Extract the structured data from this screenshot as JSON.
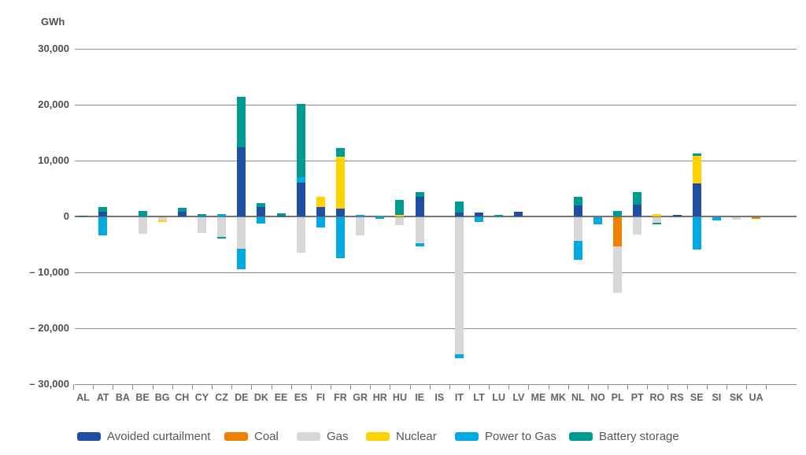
{
  "unit_label": "GWh",
  "chart_data": {
    "type": "bar",
    "stacked": true,
    "title": "",
    "ylabel": "GWh",
    "xlabel": "",
    "ylim": [
      -30000,
      30000
    ],
    "grid": "horizontal",
    "legend_position": "bottom",
    "y_ticks": [
      {
        "value": 30000,
        "label": "30,000"
      },
      {
        "value": 20000,
        "label": "20,000"
      },
      {
        "value": 10000,
        "label": "10,000"
      },
      {
        "value": 0,
        "label": "0"
      },
      {
        "value": -10000,
        "label": "– 10,000"
      },
      {
        "value": -20000,
        "label": "– 20,000"
      },
      {
        "value": -30000,
        "label": "– 30,000"
      }
    ],
    "categories": [
      "AL",
      "AT",
      "BA",
      "BE",
      "BG",
      "CH",
      "CY",
      "CZ",
      "DE",
      "DK",
      "EE",
      "ES",
      "FI",
      "FR",
      "GR",
      "HR",
      "HU",
      "IE",
      "IS",
      "IT",
      "LT",
      "LU",
      "LV",
      "ME",
      "MK",
      "NL",
      "NO",
      "PL",
      "PT",
      "RO",
      "RS",
      "SE",
      "SI",
      "SK",
      "UA"
    ],
    "series": [
      {
        "name": "Avoided curtailment",
        "color": "#1f4fa3",
        "positive": [
          150,
          850,
          0,
          0,
          0,
          850,
          0,
          0,
          12400,
          1700,
          200,
          6100,
          1700,
          1400,
          0,
          0,
          0,
          3500,
          0,
          700,
          700,
          0,
          850,
          0,
          0,
          2000,
          0,
          0,
          2100,
          0,
          250,
          5900,
          0,
          0,
          0
        ],
        "negative": [
          0,
          0,
          0,
          0,
          0,
          0,
          0,
          0,
          0,
          0,
          0,
          0,
          0,
          0,
          0,
          0,
          0,
          0,
          0,
          0,
          0,
          0,
          0,
          0,
          0,
          0,
          0,
          0,
          0,
          0,
          0,
          0,
          0,
          0,
          0
        ]
      },
      {
        "name": "Coal",
        "color": "#f08000",
        "positive": [
          0,
          0,
          0,
          0,
          0,
          0,
          0,
          0,
          0,
          0,
          0,
          0,
          0,
          0,
          0,
          0,
          0,
          0,
          0,
          0,
          0,
          0,
          0,
          0,
          0,
          0,
          0,
          0,
          0,
          0,
          0,
          0,
          0,
          0,
          0
        ],
        "negative": [
          0,
          0,
          0,
          0,
          0,
          0,
          0,
          0,
          0,
          0,
          0,
          0,
          0,
          0,
          0,
          0,
          0,
          0,
          0,
          0,
          0,
          0,
          0,
          0,
          0,
          0,
          0,
          5200,
          0,
          0,
          0,
          0,
          0,
          0,
          250
        ]
      },
      {
        "name": "Gas",
        "color": "#d8d8d8",
        "positive": [
          0,
          0,
          0,
          0,
          0,
          0,
          0,
          0,
          0,
          0,
          0,
          0,
          0,
          0,
          0,
          0,
          0,
          0,
          0,
          0,
          0,
          0,
          0,
          0,
          0,
          0,
          0,
          0,
          0,
          0,
          0,
          0,
          0,
          0,
          0
        ],
        "negative": [
          0,
          0,
          0,
          3000,
          550,
          0,
          2800,
          3500,
          5600,
          0,
          0,
          6300,
          0,
          0,
          3200,
          0,
          1400,
          4700,
          0,
          24500,
          0,
          0,
          0,
          0,
          0,
          4200,
          0,
          8300,
          3100,
          950,
          0,
          0,
          0,
          400,
          0
        ]
      },
      {
        "name": "Nuclear",
        "color": "#ffd200",
        "positive": [
          0,
          0,
          0,
          0,
          0,
          0,
          0,
          0,
          0,
          0,
          0,
          0,
          1800,
          9300,
          0,
          0,
          300,
          0,
          0,
          0,
          0,
          0,
          0,
          0,
          0,
          0,
          0,
          0,
          0,
          400,
          0,
          4900,
          0,
          0,
          0
        ],
        "negative": [
          0,
          0,
          0,
          0,
          300,
          0,
          0,
          0,
          0,
          0,
          0,
          0,
          0,
          0,
          0,
          0,
          0,
          0,
          0,
          0,
          0,
          0,
          0,
          0,
          0,
          0,
          0,
          0,
          0,
          0,
          0,
          0,
          0,
          0,
          0
        ]
      },
      {
        "name": "Power to Gas",
        "color": "#00a9e0",
        "positive": [
          0,
          0,
          0,
          0,
          0,
          0,
          0,
          400,
          0,
          0,
          0,
          1000,
          0,
          0,
          300,
          200,
          0,
          0,
          0,
          0,
          0,
          0,
          0,
          0,
          0,
          0,
          0,
          0,
          0,
          0,
          0,
          0,
          0,
          0,
          0
        ],
        "negative": [
          0,
          3200,
          0,
          0,
          0,
          0,
          0,
          0,
          3700,
          1100,
          0,
          0,
          1800,
          7300,
          0,
          300,
          0,
          450,
          0,
          700,
          850,
          0,
          0,
          0,
          0,
          3400,
          1300,
          0,
          0,
          0,
          0,
          5800,
          500,
          0,
          0
        ]
      },
      {
        "name": "Battery storage",
        "color": "#009b90",
        "positive": [
          0,
          850,
          0,
          1000,
          0,
          700,
          400,
          0,
          9000,
          700,
          400,
          13100,
          0,
          1550,
          0,
          0,
          2700,
          900,
          0,
          2000,
          0,
          300,
          0,
          0,
          0,
          1550,
          0,
          1000,
          2250,
          0,
          0,
          450,
          0,
          0,
          0
        ],
        "negative": [
          0,
          0,
          0,
          0,
          0,
          0,
          0,
          300,
          0,
          0,
          0,
          0,
          0,
          0,
          0,
          0,
          0,
          0,
          0,
          0,
          0,
          0,
          0,
          0,
          0,
          0,
          0,
          0,
          0,
          300,
          0,
          0,
          0,
          0,
          0
        ]
      }
    ]
  }
}
